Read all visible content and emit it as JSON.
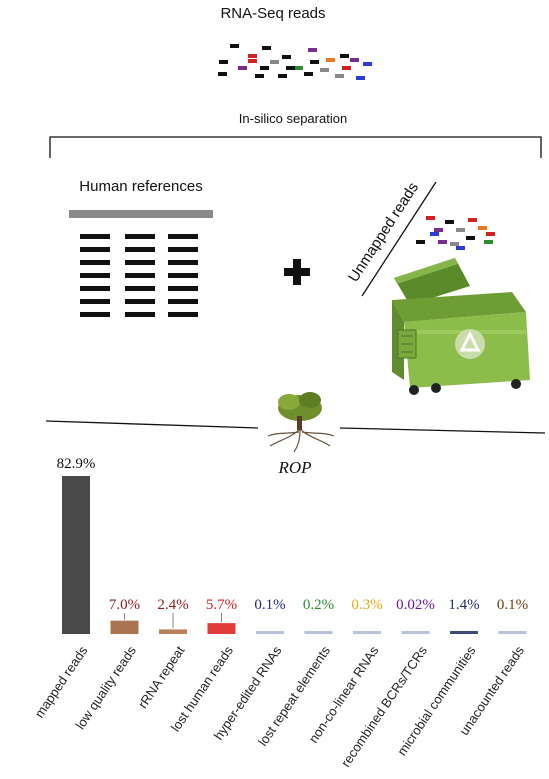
{
  "header": {
    "title": "RNA-Seq  reads",
    "separation_label": "In-silico separation"
  },
  "left_panel": {
    "title": "Human references"
  },
  "right_panel": {
    "label": "Unmapped  reads"
  },
  "tool": {
    "name": "ROP"
  },
  "colors": {
    "read_colors": [
      "#111111",
      "#d42020",
      "#7b2d8e",
      "#e87a22",
      "#888888",
      "#2e8b2e",
      "#2a3bd6"
    ],
    "bin_green": "#7fae3a",
    "bar_mapped": "#4a4a4a"
  },
  "chart_data": {
    "type": "bar",
    "categories": [
      "mapped  reads",
      "low quality reads",
      "rRNA  repeat",
      "lost human reads",
      "hyper-edited RNAs",
      "lost repeat elements",
      "non-co-linear RNAs",
      "recombined BCRs/TCRs",
      "microbial communities",
      "unacounted reads"
    ],
    "values": [
      82.9,
      7.0,
      2.4,
      5.7,
      0.1,
      0.2,
      0.3,
      0.02,
      1.4,
      0.1
    ],
    "labels": [
      "82.9%",
      "7.0%",
      "2.4%",
      "5.7%",
      "0.1%",
      "0.2%",
      "0.3%",
      "0.02%",
      "1.4%",
      "0.1%"
    ],
    "bar_colors": [
      "#4a4a4a",
      "#a97450",
      "#b7815a",
      "#e03c3c",
      "#b7c3da",
      "#b7c3da",
      "#b7c3da",
      "#b7c3da",
      "#3e4a78",
      "#b7c3da"
    ],
    "label_colors": [
      "#111111",
      "#8b1a1a",
      "#8b1a1a",
      "#d42020",
      "#1f2a7a",
      "#2e8b2e",
      "#e6a817",
      "#6a1a9a",
      "#1f2a6a",
      "#6b3a12"
    ],
    "ylim": [
      0,
      85
    ]
  }
}
